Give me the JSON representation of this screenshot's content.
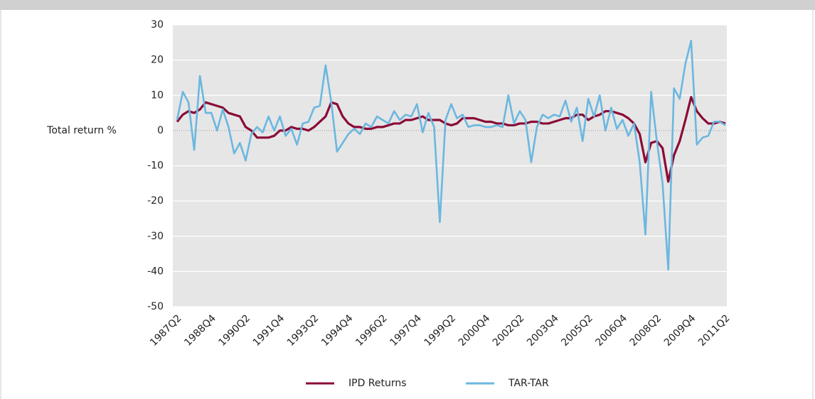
{
  "chart_data": {
    "type": "line",
    "y_label": "Total return %",
    "categories": [
      "1987Q2",
      null,
      null,
      null,
      null,
      null,
      "1988Q4",
      null,
      null,
      null,
      null,
      null,
      "1990Q2",
      null,
      null,
      null,
      null,
      null,
      "1991Q4",
      null,
      null,
      null,
      null,
      null,
      "1993Q2",
      null,
      null,
      null,
      null,
      null,
      "1994Q4",
      null,
      null,
      null,
      null,
      null,
      "1996Q2",
      null,
      null,
      null,
      null,
      null,
      "1997Q4",
      null,
      null,
      null,
      null,
      null,
      "1999Q2",
      null,
      null,
      null,
      null,
      null,
      "2000Q4",
      null,
      null,
      null,
      null,
      null,
      "2002Q2",
      null,
      null,
      null,
      null,
      null,
      "2003Q4",
      null,
      null,
      null,
      null,
      null,
      "2005Q2",
      null,
      null,
      null,
      null,
      null,
      "2006Q4",
      null,
      null,
      null,
      null,
      null,
      "2008Q2",
      null,
      null,
      null,
      null,
      null,
      "2009Q4",
      null,
      null,
      null,
      null,
      null,
      "2011Q2"
    ],
    "series": [
      {
        "name": "IPD Returns",
        "color": "#8a0b37",
        "values": [
          2.5,
          4.5,
          5.5,
          5,
          6,
          8,
          7.5,
          7,
          6.5,
          5,
          4.5,
          4,
          1,
          0,
          -2,
          -2,
          -2,
          -1.5,
          0,
          0,
          1,
          0.5,
          0.5,
          0,
          1,
          2.5,
          4,
          8,
          7.5,
          4,
          2,
          1,
          1,
          0.5,
          0.5,
          1,
          1,
          1.5,
          2,
          2,
          3,
          3,
          3.5,
          4,
          3,
          3,
          3,
          2,
          1.5,
          2,
          3.5,
          3.5,
          3.5,
          3,
          2.5,
          2.5,
          2,
          2,
          1.5,
          1.5,
          2,
          2,
          2.5,
          2.5,
          2,
          2,
          2.5,
          3,
          3.5,
          3.5,
          4.5,
          4.5,
          3,
          4,
          4.5,
          5.5,
          5.5,
          5,
          4.5,
          3.5,
          2,
          -1,
          -9,
          -3.5,
          -3,
          -5,
          -14.5,
          -7,
          -3,
          3,
          9.5,
          5.5,
          3.5,
          2,
          2,
          2.5,
          2
        ]
      },
      {
        "name": "TAR-TAR",
        "color": "#6bb7e0",
        "values": [
          3,
          11,
          8,
          -5.5,
          15.5,
          5,
          5,
          0,
          6,
          1,
          -6.5,
          -3.5,
          -8.5,
          -1,
          1,
          -0.5,
          4,
          0,
          4,
          -1.5,
          0.5,
          -4,
          2,
          2.5,
          6.5,
          7,
          18.5,
          8,
          -6,
          -3.5,
          -1,
          0.5,
          -1,
          2,
          1,
          4,
          3,
          2,
          5.5,
          3,
          4.5,
          4,
          7.5,
          -0.5,
          5,
          1,
          -26,
          3,
          7.5,
          3.5,
          4.5,
          1,
          1.5,
          1.5,
          1,
          1,
          1.5,
          1,
          10,
          2,
          5.5,
          3,
          -9,
          1,
          4.5,
          3.5,
          4.5,
          4,
          8.5,
          2.5,
          6.5,
          -3,
          9,
          4,
          10,
          0,
          6.5,
          0.5,
          3,
          -1.5,
          2,
          -9,
          -29.5,
          11,
          -3,
          -15,
          -39.5,
          12,
          9,
          19,
          25.5,
          -4,
          -2,
          -1.5,
          2.5,
          2.5,
          1.5
        ]
      }
    ],
    "ylim": [
      -50,
      30
    ],
    "yticks": [
      -50,
      -40,
      -30,
      -20,
      -10,
      0,
      10,
      20,
      30
    ],
    "grid": true
  }
}
